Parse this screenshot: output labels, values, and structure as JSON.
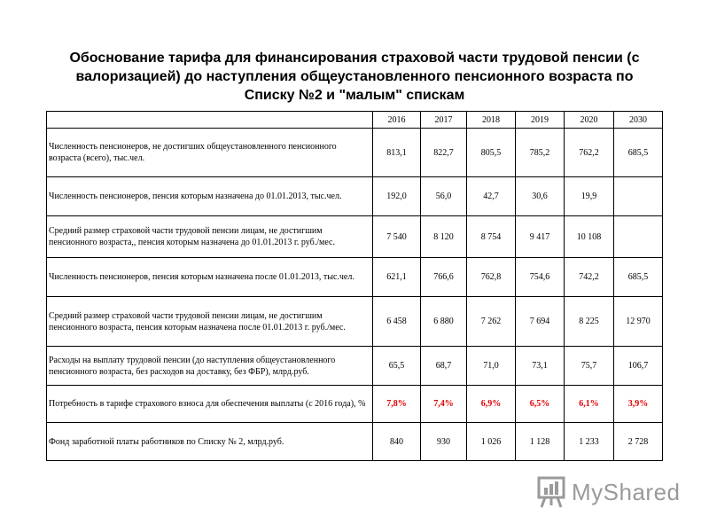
{
  "title": "Обоснование тарифа для финансирования страховой части трудовой пенсии (с валоризацией) до наступления общеустановленного пенсионного возраста по Списку №2 и \"малым\" спискам",
  "table": {
    "years": [
      "2016",
      "2017",
      "2018",
      "2019",
      "2020",
      "2030"
    ],
    "rows": [
      {
        "label": "Численность пенсионеров, не достигших общеустановленного пенсионного возраста (всего), тыс.чел.",
        "values": [
          "813,1",
          "822,7",
          "805,5",
          "785,2",
          "762,2",
          "685,5"
        ],
        "highlight": false
      },
      {
        "label": "Численность пенсионеров, пенсия которым назначена до 01.01.2013, тыс.чел.",
        "values": [
          "192,0",
          "56,0",
          "42,7",
          "30,6",
          "19,9",
          ""
        ],
        "highlight": false
      },
      {
        "label": "Средний размер страховой части трудовой пенсии лицам, не достигшим пенсионного возраста,, пенсия которым назначена до 01.01.2013 г. руб./мес.",
        "values": [
          "7 540",
          "8 120",
          "8 754",
          "9 417",
          "10 108",
          ""
        ],
        "highlight": false
      },
      {
        "label": "Численность пенсионеров, пенсия которым назначена после 01.01.2013, тыс.чел.",
        "values": [
          "621,1",
          "766,6",
          "762,8",
          "754,6",
          "742,2",
          "685,5"
        ],
        "highlight": false
      },
      {
        "label": "Средний размер страховой части трудовой пенсии лицам, не достигшим пенсионного возраста, пенсия которым назначена после 01.01.2013 г. руб./мес.",
        "values": [
          "6 458",
          "6 880",
          "7 262",
          "7 694",
          "8 225",
          "12 970"
        ],
        "highlight": false
      },
      {
        "label": "Расходы на выплату трудовой пенсии (до наступления общеустановленного пенсионного возраста, без расходов на доставку, без ФБР), млрд.руб.",
        "values": [
          "65,5",
          "68,7",
          "71,0",
          "73,1",
          "75,7",
          "106,7"
        ],
        "highlight": false
      },
      {
        "label": "Потребность в тарифе страхового взноса для обеспечения выплаты (с 2016 года), %",
        "values": [
          "7,8%",
          "7,4%",
          "6,9%",
          "6,5%",
          "6,1%",
          "3,9%"
        ],
        "highlight": true
      },
      {
        "label": "Фонд заработной платы работников по Списку № 2, млрд.руб.",
        "values": [
          "840",
          "930",
          "1 026",
          "1 128",
          "1 233",
          "2 728"
        ],
        "highlight": false
      }
    ]
  },
  "logo": {
    "text": "MyShared",
    "icon": "presentation-board-icon"
  },
  "colors": {
    "highlight": "#e00000",
    "logo": "#9a9a9a"
  }
}
